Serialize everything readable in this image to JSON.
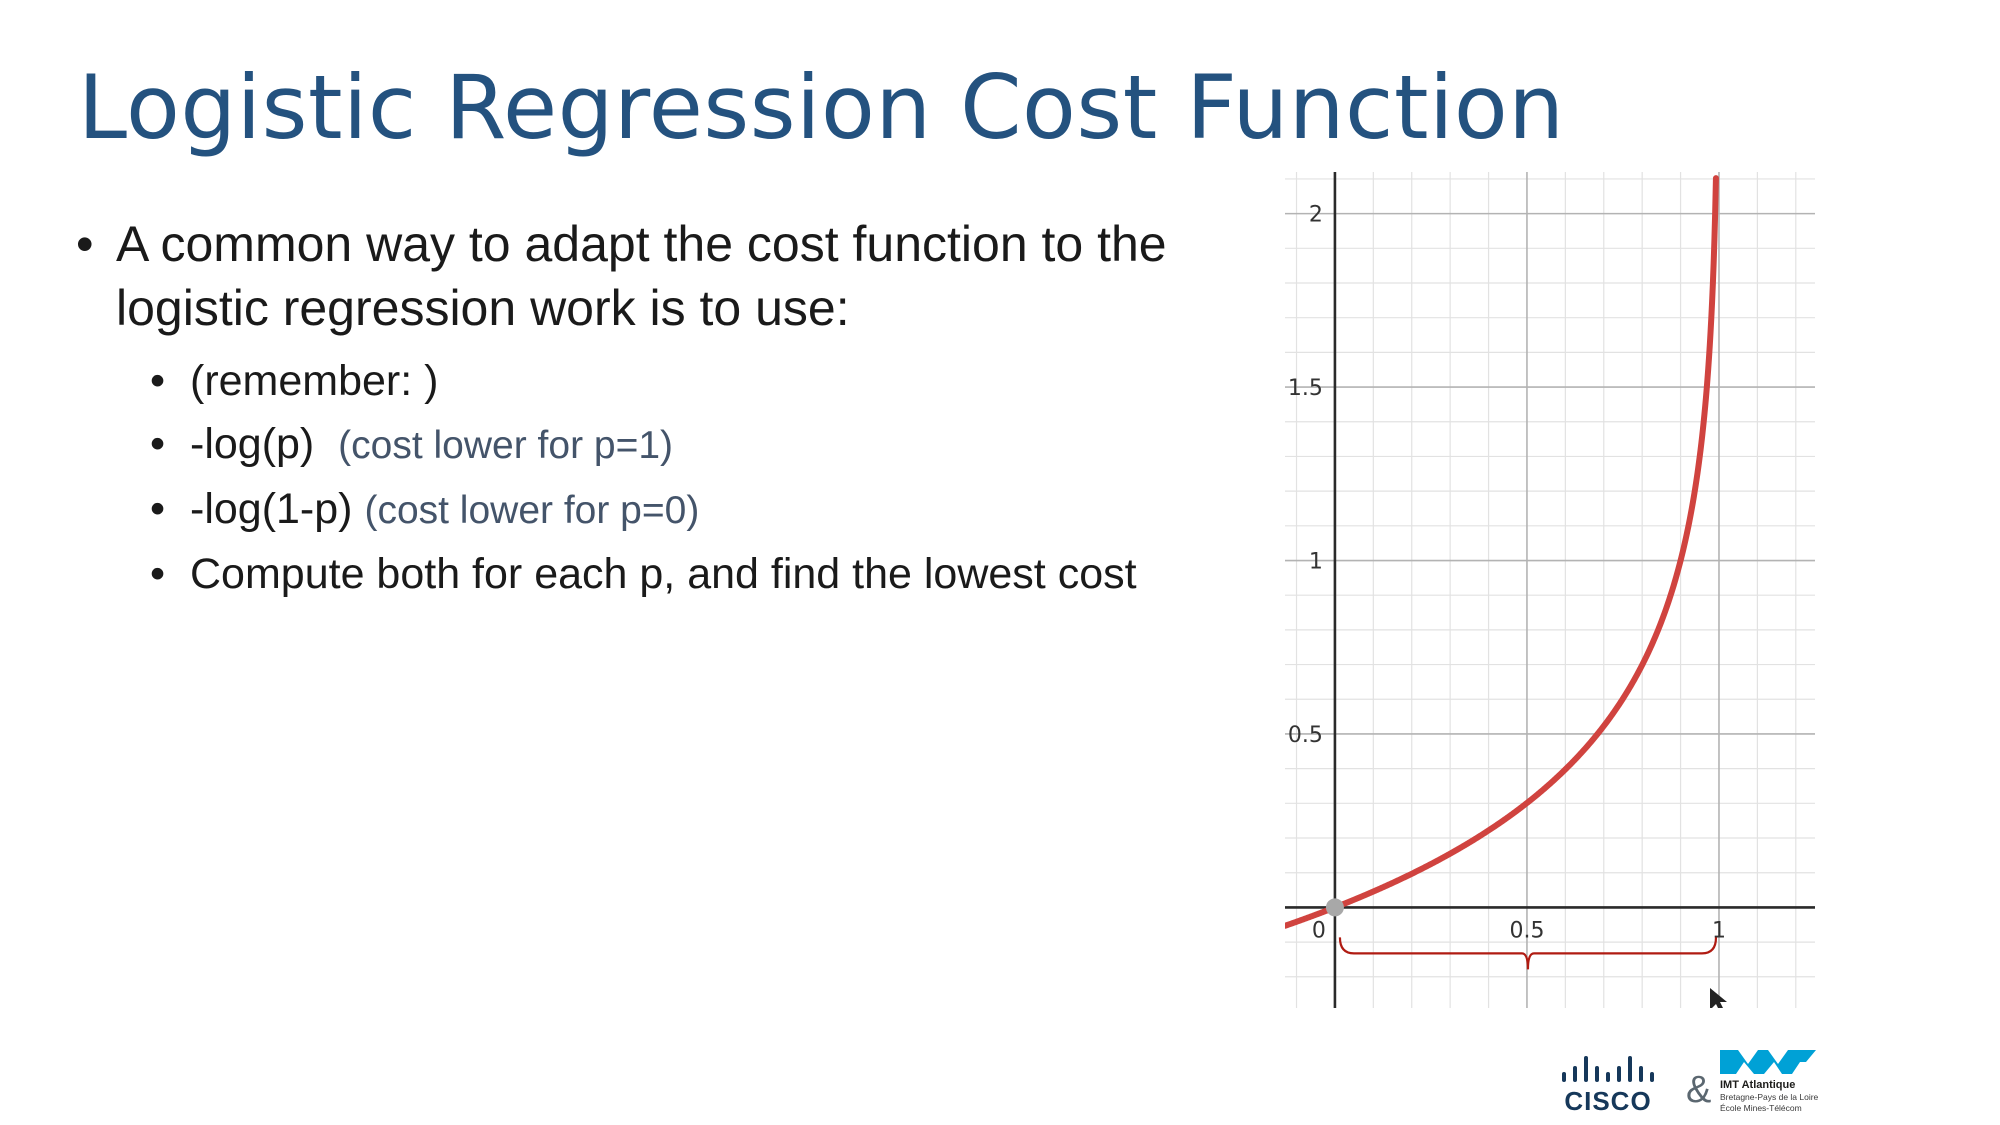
{
  "slide": {
    "title": "Logistic Regression Cost Function",
    "bullets": {
      "main": "A common way to adapt the cost function to the logistic regression work is to use:",
      "sub": [
        {
          "text": "(remember: )",
          "note": ""
        },
        {
          "text": "-log(p)",
          "note": "(cost lower for p=1)"
        },
        {
          "text": "-log(1-p)",
          "note": "(cost lower for p=0)"
        },
        {
          "text": "Compute both for each p, and find the lowest cost",
          "note": ""
        }
      ]
    }
  },
  "chart_data": {
    "type": "line",
    "function": "-log(1-p)",
    "x": [
      -0.1,
      0,
      0.1,
      0.2,
      0.3,
      0.4,
      0.5,
      0.6,
      0.7,
      0.8,
      0.9,
      0.95,
      0.98,
      0.99
    ],
    "y": [
      -0.0414,
      0,
      0.0458,
      0.0969,
      0.1549,
      0.2218,
      0.301,
      0.3979,
      0.5229,
      0.699,
      1.0,
      1.301,
      1.699,
      2.0
    ],
    "xlim": [
      -0.13,
      1.25
    ],
    "ylim": [
      -0.29,
      2.12
    ],
    "xticks": [
      {
        "value": 0,
        "label": "0"
      },
      {
        "value": 0.5,
        "label": "0.5"
      },
      {
        "value": 1,
        "label": "1"
      }
    ],
    "yticks": [
      {
        "value": 0.5,
        "label": "0.5"
      },
      {
        "value": 1,
        "label": "1"
      },
      {
        "value": 1.5,
        "label": "1.5"
      },
      {
        "value": 2,
        "label": "2"
      }
    ],
    "grid": true,
    "minor_grid_step": 0.1,
    "line_color": "#d0433f",
    "brace_color": "#b01b12",
    "brace_range": [
      0,
      1
    ],
    "origin_point": [
      0,
      0
    ]
  },
  "logos": {
    "cisco": "CISCO",
    "amp": "&",
    "imt": {
      "name": "IMT Atlantique",
      "line1": "Bretagne-Pays de la Loire",
      "line2": "École Mines-Télécom"
    }
  }
}
